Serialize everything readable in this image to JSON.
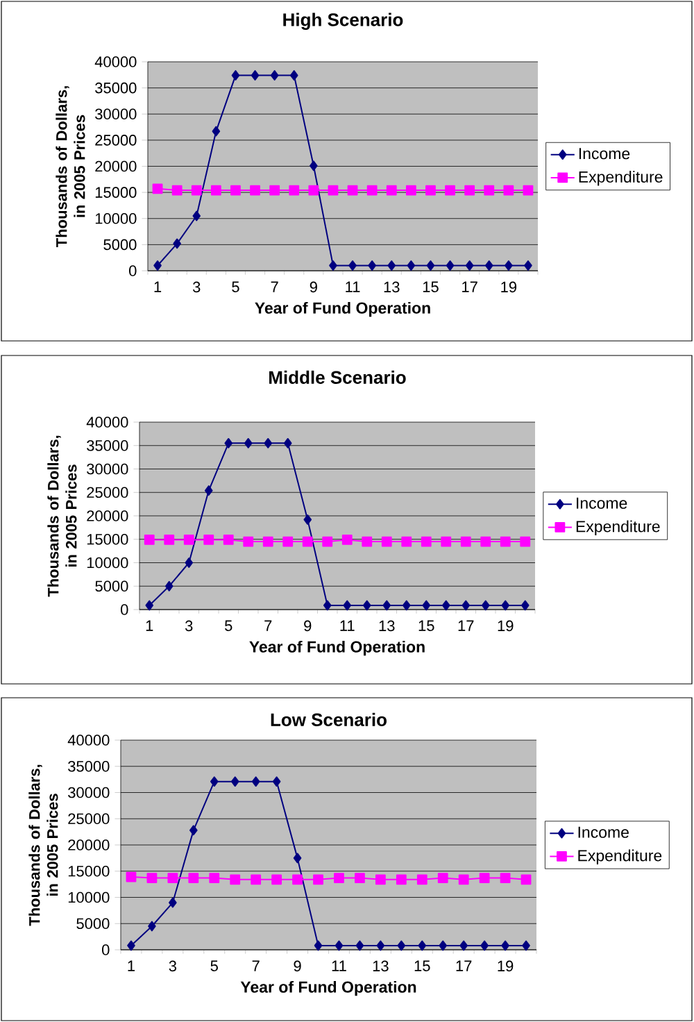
{
  "chart_data": [
    {
      "type": "line",
      "title": "High Scenario",
      "xlabel": "Year of Fund Operation",
      "ylabel": "Thousands of Dollars, in 2005 Prices",
      "categories": [
        "1",
        null,
        "3",
        null,
        "5",
        null,
        "7",
        null,
        "9",
        null,
        "11",
        null,
        "13",
        null,
        "15",
        null,
        "17",
        null,
        "19",
        null
      ],
      "series": [
        {
          "name": "Income",
          "color": "#000080",
          "marker": "diamond",
          "values": [
            1000,
            5200,
            10500,
            26700,
            37400,
            37400,
            37400,
            37400,
            20100,
            1000,
            1000,
            1000,
            1000,
            1000,
            1000,
            1000,
            1000,
            1000,
            1000,
            1000
          ]
        },
        {
          "name": "Expenditure",
          "color": "#ff00ff",
          "marker": "square",
          "values": [
            15700,
            15400,
            15400,
            15400,
            15400,
            15400,
            15400,
            15400,
            15400,
            15400,
            15400,
            15400,
            15400,
            15400,
            15400,
            15400,
            15400,
            15400,
            15400,
            15400
          ]
        }
      ],
      "ylim": [
        0,
        40000
      ],
      "yticks": [
        0,
        5000,
        10000,
        15000,
        20000,
        25000,
        30000,
        35000,
        40000
      ],
      "grid": "y",
      "legend": "right"
    },
    {
      "type": "line",
      "title": "Middle Scenario",
      "xlabel": "Year of Fund Operation",
      "ylabel": "Thousands of Dollars, in 2005 Prices",
      "categories": [
        "1",
        null,
        "3",
        null,
        "5",
        null,
        "7",
        null,
        "9",
        null,
        "11",
        null,
        "13",
        null,
        "15",
        null,
        "17",
        null,
        "19",
        null
      ],
      "series": [
        {
          "name": "Income",
          "color": "#000080",
          "marker": "diamond",
          "values": [
            900,
            5000,
            10000,
            25400,
            35500,
            35500,
            35500,
            35500,
            19200,
            900,
            900,
            900,
            900,
            900,
            900,
            900,
            900,
            900,
            900,
            900
          ]
        },
        {
          "name": "Expenditure",
          "color": "#ff00ff",
          "marker": "square",
          "values": [
            14900,
            14900,
            14900,
            14900,
            14900,
            14500,
            14500,
            14500,
            14500,
            14500,
            14900,
            14500,
            14500,
            14500,
            14500,
            14500,
            14500,
            14500,
            14500,
            14500
          ]
        }
      ],
      "ylim": [
        0,
        40000
      ],
      "yticks": [
        0,
        5000,
        10000,
        15000,
        20000,
        25000,
        30000,
        35000,
        40000
      ],
      "grid": "y",
      "legend": "right"
    },
    {
      "type": "line",
      "title": "Low Scenario",
      "xlabel": "Year of Fund Operation",
      "ylabel": "Thousands of Dollars, in 2005 Prices",
      "categories": [
        "1",
        null,
        "3",
        null,
        "5",
        null,
        "7",
        null,
        "9",
        null,
        "11",
        null,
        "13",
        null,
        "15",
        null,
        "17",
        null,
        "19",
        null
      ],
      "series": [
        {
          "name": "Income",
          "color": "#000080",
          "marker": "diamond",
          "values": [
            800,
            4500,
            9000,
            22800,
            32100,
            32100,
            32100,
            32100,
            17500,
            800,
            800,
            800,
            800,
            800,
            800,
            800,
            800,
            800,
            800,
            800
          ]
        },
        {
          "name": "Expenditure",
          "color": "#ff00ff",
          "marker": "square",
          "values": [
            13900,
            13700,
            13700,
            13700,
            13700,
            13400,
            13400,
            13400,
            13400,
            13400,
            13700,
            13700,
            13400,
            13400,
            13400,
            13700,
            13400,
            13700,
            13700,
            13400
          ]
        }
      ],
      "ylim": [
        0,
        40000
      ],
      "yticks": [
        0,
        5000,
        10000,
        15000,
        20000,
        25000,
        30000,
        35000,
        40000
      ],
      "grid": "y",
      "legend": "right"
    }
  ]
}
